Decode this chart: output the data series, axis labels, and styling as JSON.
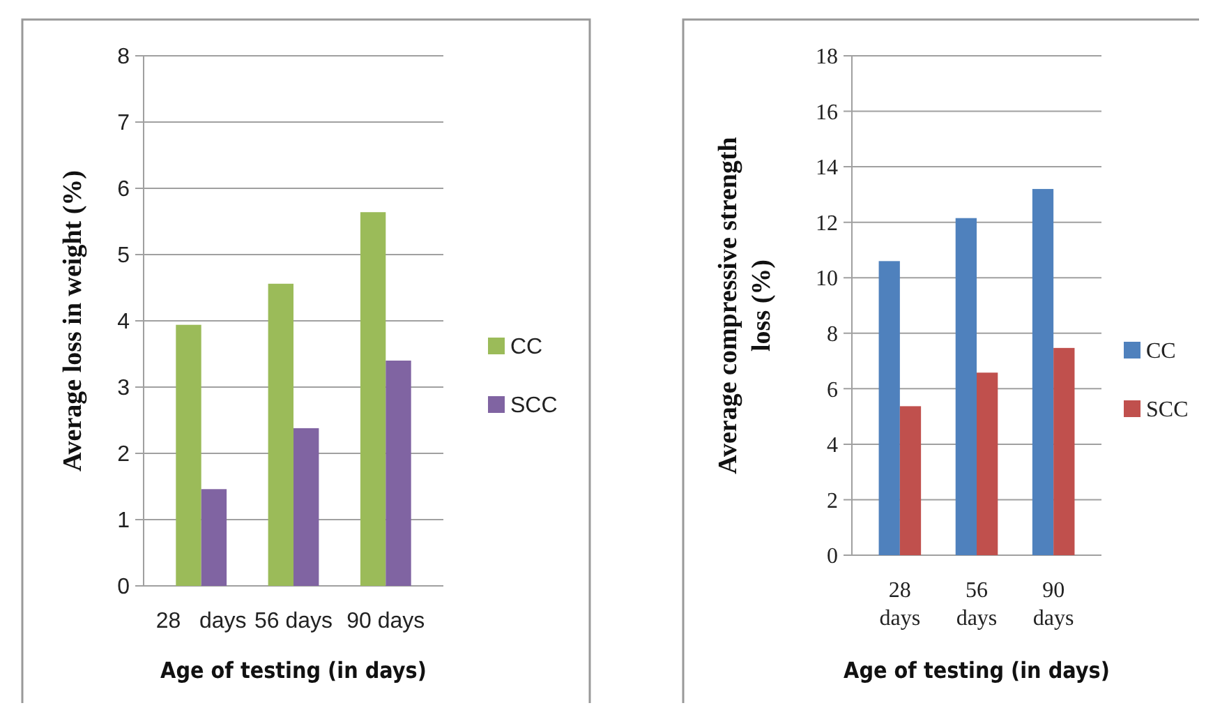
{
  "chart_data": [
    {
      "type": "bar",
      "categories": [
        "28   days",
        "56 days",
        "90 days"
      ],
      "xlabel": "Age of testing (in days)",
      "ylabel": "Average loss in weight (%)",
      "ylim": [
        0,
        8
      ],
      "yticks": [
        0,
        1,
        2,
        3,
        4,
        5,
        6,
        7,
        8
      ],
      "grid": "y",
      "legend": "right",
      "series": [
        {
          "name": "CC",
          "color": "#9bbb59",
          "values": [
            3.94,
            4.56,
            5.64
          ]
        },
        {
          "name": "SCC",
          "color": "#8064a2",
          "values": [
            1.46,
            2.38,
            3.4
          ]
        }
      ]
    },
    {
      "type": "bar",
      "categories": [
        "28 days",
        "56 days",
        "90 days"
      ],
      "xlabel": "Age of testing (in days)",
      "ylabel": "Average compressive strength loss (%)",
      "ylim": [
        0,
        18
      ],
      "yticks": [
        0,
        2,
        4,
        6,
        8,
        10,
        12,
        14,
        16,
        18
      ],
      "grid": "y",
      "legend": "right",
      "series": [
        {
          "name": "CC",
          "color": "#4f81bd",
          "values": [
            10.6,
            12.15,
            13.2
          ]
        },
        {
          "name": "SCC",
          "color": "#c0504d",
          "values": [
            5.37,
            6.58,
            7.47
          ]
        }
      ]
    }
  ]
}
